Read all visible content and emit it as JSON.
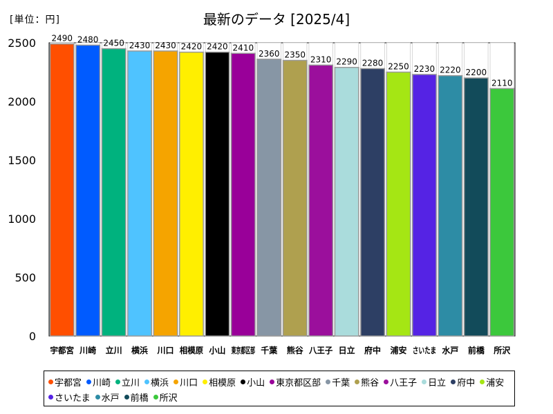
{
  "header": {
    "unit_label": "[単位：円]",
    "title": "最新のデータ [2025/4]"
  },
  "chart_data": {
    "type": "bar",
    "title": "最新のデータ [2025/4]",
    "unit": "[単位：円]",
    "ylim": [
      0,
      2500
    ],
    "yticks": [
      0,
      500,
      1000,
      1500,
      2000,
      2500
    ],
    "categories": [
      "宇都宮",
      "川崎",
      "立川",
      "横浜",
      "川口",
      "相模原",
      "小山",
      "東京都区部",
      "千葉",
      "熊谷",
      "八王子",
      "日立",
      "府中",
      "浦安",
      "さいたま",
      "水戸",
      "前橋",
      "所沢"
    ],
    "values": [
      2490,
      2480,
      2450,
      2430,
      2430,
      2420,
      2420,
      2410,
      2360,
      2350,
      2310,
      2290,
      2280,
      2250,
      2230,
      2220,
      2200,
      2110
    ],
    "colors": [
      "#ff4f00",
      "#005bff",
      "#00b27e",
      "#4fc3ff",
      "#f5a400",
      "#ffef00",
      "#000000",
      "#990099",
      "#8796a5",
      "#afa04f",
      "#9b0f9c",
      "#aadcdc",
      "#2d3f64",
      "#a5e614",
      "#5523e4",
      "#2d8ca5",
      "#124b5a",
      "#3cc83c"
    ],
    "legend_position": "bottom"
  }
}
